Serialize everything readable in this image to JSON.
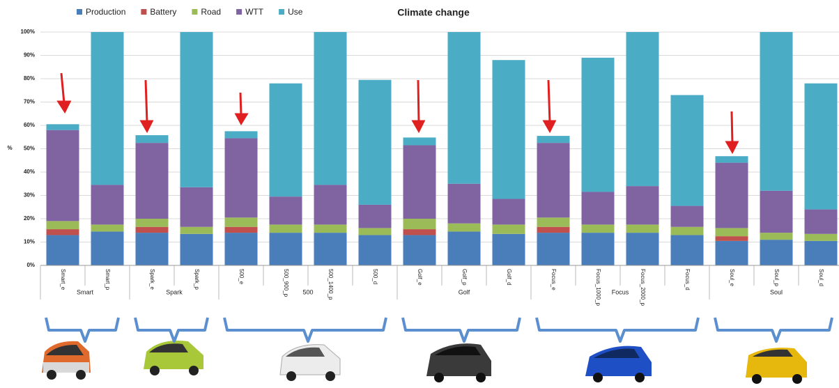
{
  "chart_data": {
    "type": "bar",
    "stacked": true,
    "title": "Climate change",
    "y_label": "%",
    "categories": [
      "Smart_e",
      "Smart_p",
      "Spark_e",
      "Spark_p",
      "500_e",
      "500_900_p",
      "500_1400_p",
      "500_d",
      "Golf_e",
      "Golf_p",
      "Golf_d",
      "Focus_e",
      "Focus_1000_p",
      "Focus_2000_p",
      "Focus_d",
      "Soul_e",
      "Soul_p",
      "Soul_d"
    ],
    "groups": [
      "Smart",
      "Spark",
      "500",
      "Golf",
      "Focus",
      "Soul"
    ],
    "series": [
      {
        "name": "Production",
        "color": "#4a7ebb",
        "values": [
          13,
          14.5,
          14,
          13.5,
          14,
          14,
          14,
          13,
          13,
          14.5,
          13.5,
          14,
          14,
          14,
          13,
          10.5,
          11,
          10.5
        ]
      },
      {
        "name": "Battery",
        "color": "#c0504d",
        "values": [
          2.5,
          0,
          2.5,
          0,
          2.5,
          0,
          0,
          0,
          2.5,
          0,
          0,
          2.5,
          0,
          0,
          0,
          2,
          0,
          0
        ]
      },
      {
        "name": "Road",
        "color": "#9bbb59",
        "values": [
          3.5,
          3,
          3.5,
          3,
          4,
          3.5,
          3.5,
          3,
          4.5,
          3.5,
          4,
          4,
          3.5,
          3.5,
          3.5,
          3.5,
          3,
          3
        ]
      },
      {
        "name": "WTT",
        "color": "#8064a2",
        "values": [
          39,
          17,
          32.5,
          17,
          34,
          12,
          17,
          10,
          31.5,
          17,
          11,
          32,
          14,
          16.5,
          9,
          28,
          18,
          10.5
        ]
      },
      {
        "name": "Use",
        "color": "#4bacc6",
        "values": [
          2.5,
          65.5,
          3.3,
          66.5,
          3,
          48.5,
          65.5,
          53.5,
          3.3,
          65,
          59.5,
          3,
          57.5,
          66,
          47.5,
          2.8,
          68,
          54
        ]
      }
    ],
    "ylim": [
      0,
      100
    ],
    "yticks": [
      {
        "value": 0,
        "label": "0%"
      },
      {
        "value": 10,
        "label": "10%"
      },
      {
        "value": 20,
        "label": "20%"
      },
      {
        "value": 30,
        "label": "30%"
      },
      {
        "value": 40,
        "label": "40%"
      },
      {
        "value": 50,
        "label": "50%"
      },
      {
        "value": 60,
        "label": "60%"
      },
      {
        "value": 70,
        "label": "70%"
      },
      {
        "value": 80,
        "label": "80%"
      },
      {
        "value": 90,
        "label": "90%"
      },
      {
        "value": 100,
        "label": "100%"
      }
    ],
    "grid": true,
    "legend": "top"
  }
}
